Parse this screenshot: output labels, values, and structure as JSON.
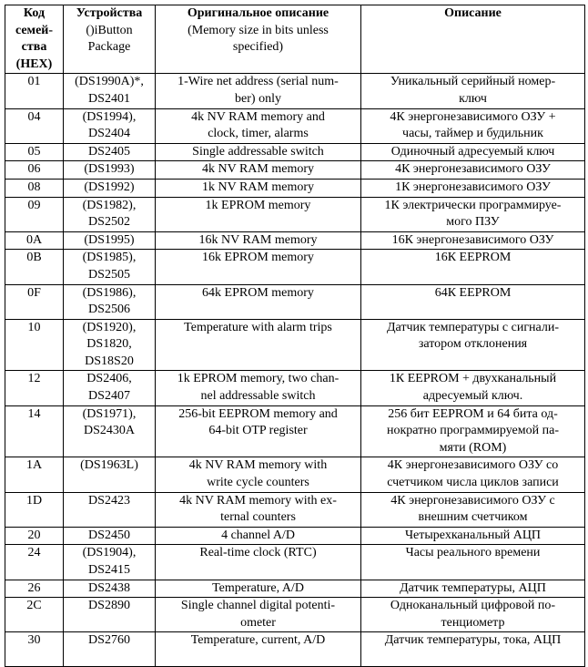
{
  "header": {
    "code": {
      "bold": "Код\nсемей-\nства\n(HEX)",
      "normal": ""
    },
    "devices": {
      "bold": "Устройства",
      "normal": "()iButton\nPackage"
    },
    "original": {
      "bold": "Оригинальное описание",
      "normal": "(Memory size in bits unless\nspecified)"
    },
    "description": {
      "bold": "Описание",
      "normal": ""
    }
  },
  "rows": [
    {
      "code": "01",
      "devices": "(DS1990A)*,\nDS2401",
      "original": "1-Wire net address (serial num-\nber) only",
      "description": "Уникальный серийный номер-\nключ"
    },
    {
      "code": "04",
      "devices": "(DS1994),\nDS2404",
      "original": "4k NV RAM memory and\nclock, timer, alarms",
      "description": "4К энергонезависимого ОЗУ +\nчасы, таймер и будильник"
    },
    {
      "code": "05",
      "devices": "DS2405",
      "original": "Single addressable switch",
      "description": "Одиночный адресуемый ключ"
    },
    {
      "code": "06",
      "devices": "(DS1993)",
      "original": "4k NV RAM memory",
      "description": "4К энергонезависимого ОЗУ"
    },
    {
      "code": "08",
      "devices": "(DS1992)",
      "original": "1k NV RAM memory",
      "description": "1К энергонезависимого ОЗУ"
    },
    {
      "code": "09",
      "devices": "(DS1982),\nDS2502",
      "original": "1k EPROM memory",
      "description": "1К электрически программируе-\nмого ПЗУ"
    },
    {
      "code": "0A",
      "devices": "(DS1995)",
      "original": "16k NV RAM memory",
      "description": "16К энергонезависимого ОЗУ"
    },
    {
      "code": "0B",
      "devices": "(DS1985),\nDS2505",
      "original": "16k EPROM memory",
      "description": "16К EEPROM"
    },
    {
      "code": "0F",
      "devices": "(DS1986),\nDS2506",
      "original": "64k EPROM memory",
      "description": "64К EEPROM"
    },
    {
      "code": "10",
      "devices": "(DS1920),\nDS1820,\nDS18S20",
      "original": "Temperature with alarm trips",
      "description": "Датчик температуры с сигнали-\nзатором отклонения"
    },
    {
      "code": "12",
      "devices": "DS2406,\nDS2407",
      "original": "1k EPROM memory, two chan-\nnel addressable switch",
      "description": "1К EEPROM + двухканальный\nадресуемый ключ."
    },
    {
      "code": "14",
      "devices": "(DS1971),\nDS2430A",
      "original": "256-bit EEPROM memory and\n64-bit OTP register",
      "description": "256 бит EEPROM и 64 бита од-\nнократно программируемой па-\nмяти (ROM)"
    },
    {
      "code": "1A",
      "devices": "(DS1963L)",
      "original": "4k NV RAM memory with\nwrite cycle counters",
      "description": "4К энергонезависимого ОЗУ со\nсчетчиком числа циклов записи"
    },
    {
      "code": "1D",
      "devices": "DS2423",
      "original": "4k NV RAM memory with ex-\nternal counters",
      "description": "4К энергонезависимого ОЗУ с\nвнешним счетчиком"
    },
    {
      "code": "20",
      "devices": "DS2450",
      "original": "4 channel A/D",
      "description": "Четырехканальный АЦП"
    },
    {
      "code": "24",
      "devices": "(DS1904),\nDS2415",
      "original": "Real-time clock (RTC)",
      "description": "Часы реального времени"
    },
    {
      "code": "26",
      "devices": "DS2438",
      "original": "Temperature, A/D",
      "description": "Датчик температуры, АЦП"
    },
    {
      "code": "2C",
      "devices": "DS2890",
      "original": "Single channel digital potenti-\nometer",
      "description": "Одноканальный цифровой по-\nтенциометр"
    },
    {
      "code": "30",
      "devices": "DS2760",
      "original": "Temperature, current, A/D",
      "description": "Датчик температуры, тока, АЦП"
    }
  ]
}
